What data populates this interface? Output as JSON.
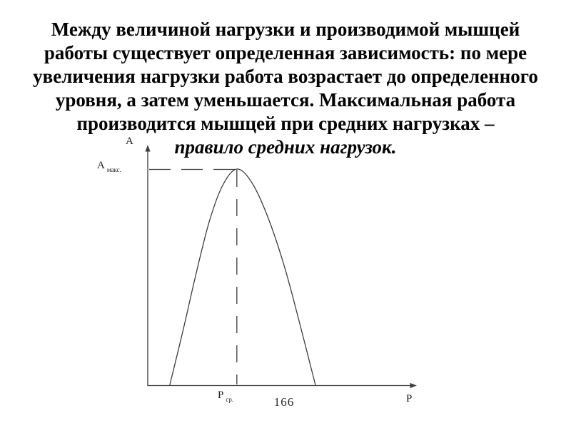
{
  "slide": {
    "background_color": "#ffffff",
    "text_color": "#040404",
    "line_color": "#3d3d3d",
    "page_number": "166"
  },
  "title": {
    "lines": [
      "Между величиной нагрузки и производимой мышцей",
      "работы существует определенная зависимость: по мере",
      "увеличения нагрузки работа возрастает до определенного",
      "уровня, а затем уменьшается. Максимальная работа",
      "производится мышцей при средних нагрузках –"
    ],
    "emphasis_line": "правило средних нагрузок."
  },
  "chart": {
    "y_axis_letter": "А",
    "x_axis_letter": "Р",
    "y_max_label": {
      "main": "А",
      "sub": "макс."
    },
    "x_mid_label": {
      "main": "Р",
      "sub": "ср."
    }
  },
  "chart_data": {
    "type": "line",
    "title": "",
    "xlabel": "Р",
    "ylabel": "А",
    "x_tick_labels": [
      "Р ср."
    ],
    "y_tick_labels": [
      "А макс."
    ],
    "axes_numeric": false,
    "grid": false,
    "legend": false,
    "peak": {
      "x_label": "Р ср.",
      "y_label": "А макс."
    },
    "dashed_guides": [
      "horizontal dashed line from y-axis level А макс. to curve peak",
      "vertical dashed line from curve peak down to x-axis at Р ср."
    ],
    "series": [
      {
        "name": "curve",
        "x_norm": [
          0.082,
          0.133,
          0.181,
          0.229,
          0.279,
          0.332,
          0.388,
          0.447,
          0.508,
          0.566,
          0.625
        ],
        "y_norm": [
          0.0,
          0.261,
          0.521,
          0.756,
          0.924,
          1.0,
          0.937,
          0.779,
          0.554,
          0.287,
          0.0
        ]
      }
    ]
  }
}
